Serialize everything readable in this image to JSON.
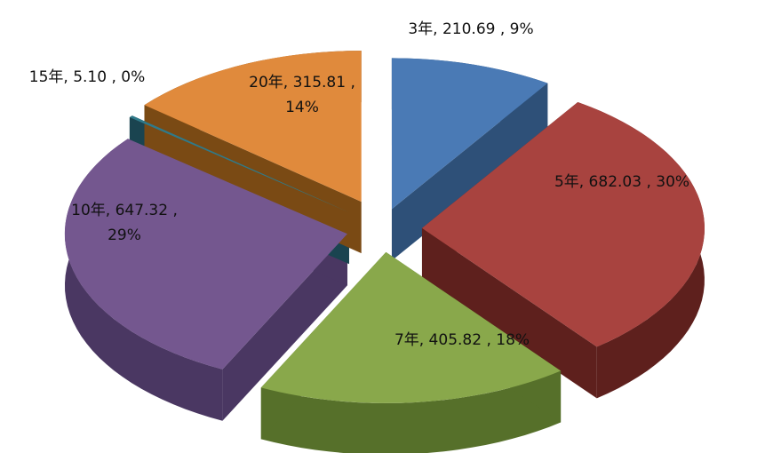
{
  "chart_data": {
    "type": "pie",
    "title": "",
    "style": "3d-exploded",
    "slices": [
      {
        "label": "3年",
        "value": 210.69,
        "percent": "9%",
        "text": "3年, 210.69 , 9%",
        "color": "#4a7ab5",
        "side_color": "#2e5078"
      },
      {
        "label": "5年",
        "value": 682.03,
        "percent": "30%",
        "text": "5年, 682.03 , 30%",
        "color": "#a8433f",
        "side_color": "#5e201d"
      },
      {
        "label": "7年",
        "value": 405.82,
        "percent": "18%",
        "text": "7年, 405.82 , 18%",
        "color": "#89a84b",
        "side_color": "#56702a"
      },
      {
        "label": "10年",
        "value": 647.32,
        "percent": "29%",
        "text": [
          "10年, 647.32 ,",
          "29%"
        ],
        "color": "#74578f",
        "side_color": "#4a3762"
      },
      {
        "label": "15年",
        "value": 5.1,
        "percent": "0%",
        "text": "15年, 5.10 , 0%",
        "color": "#2f7a8a",
        "side_color": "#1a4450"
      },
      {
        "label": "20年",
        "value": 315.81,
        "percent": "14%",
        "text": [
          "20年, 315.81 ,",
          "14%"
        ],
        "color": "#e08a3c",
        "side_color": "#7a4a14"
      }
    ]
  }
}
